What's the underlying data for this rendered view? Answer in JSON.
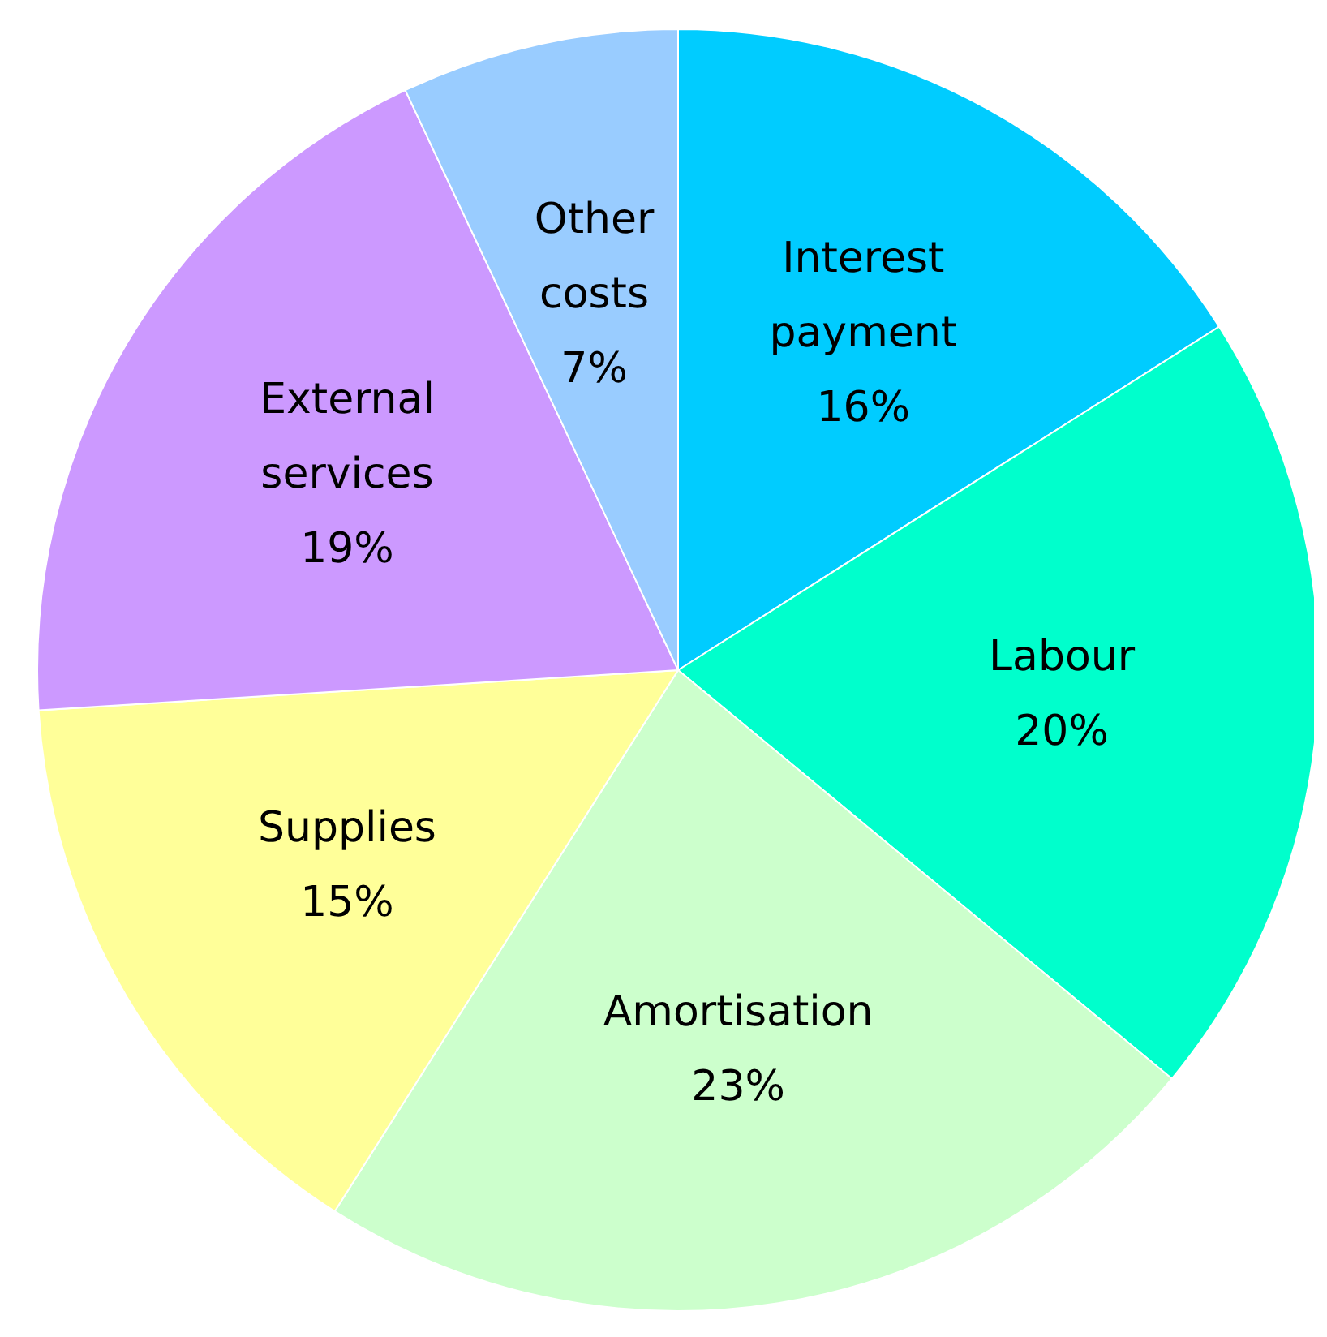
{
  "chart_data": {
    "type": "pie",
    "categories": [
      "Interest payment",
      "Labour",
      "Amortisation",
      "Supplies",
      "External services",
      "Other costs"
    ],
    "values": [
      16,
      20,
      23,
      15,
      19,
      7
    ],
    "value_labels": [
      "16%",
      "20%",
      "23%",
      "15%",
      "19%",
      "7%"
    ],
    "colors": [
      "#00ccff",
      "#00ffcc",
      "#ccffcc",
      "#ffff99",
      "#cc99ff",
      "#99ccff"
    ]
  }
}
